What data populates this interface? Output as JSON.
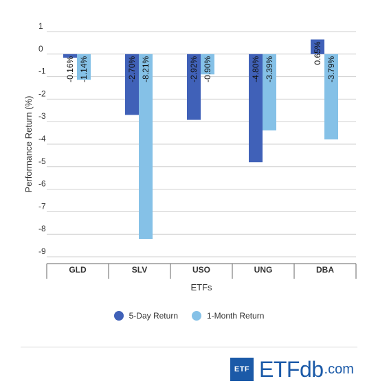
{
  "chart_data": {
    "type": "bar",
    "title": "",
    "xlabel": "ETFs",
    "ylabel": "Performance Return (%)",
    "categories": [
      "GLD",
      "SLV",
      "USO",
      "UNG",
      "DBA"
    ],
    "series": [
      {
        "name": "5-Day Return",
        "color": "#4061b8",
        "values": [
          -0.16,
          -2.7,
          -2.92,
          -4.8,
          0.65
        ]
      },
      {
        "name": "1-Month Return",
        "color": "#85c1e7",
        "values": [
          -1.14,
          -8.21,
          -0.9,
          -3.39,
          -3.79
        ]
      }
    ],
    "data_labels": [
      [
        "-0.16%",
        "-2.70%",
        "-2.92%",
        "-4.80%",
        "0.65%"
      ],
      [
        "-1.14%",
        "-8.21%",
        "-0.90%",
        "-3.39%",
        "-3.79%"
      ]
    ],
    "ylim": [
      -9,
      1
    ],
    "yticks": [
      "1",
      "0",
      "-1",
      "-2",
      "-3",
      "-4",
      "-5",
      "-6",
      "-7",
      "-8",
      "-9"
    ],
    "grid": true,
    "legend_position": "bottom"
  },
  "legend": {
    "item1": "5-Day Return",
    "item2": "1-Month Return"
  },
  "logo": {
    "box_text": "ETF",
    "main_text": "ETFdb",
    "suffix": ".com"
  }
}
